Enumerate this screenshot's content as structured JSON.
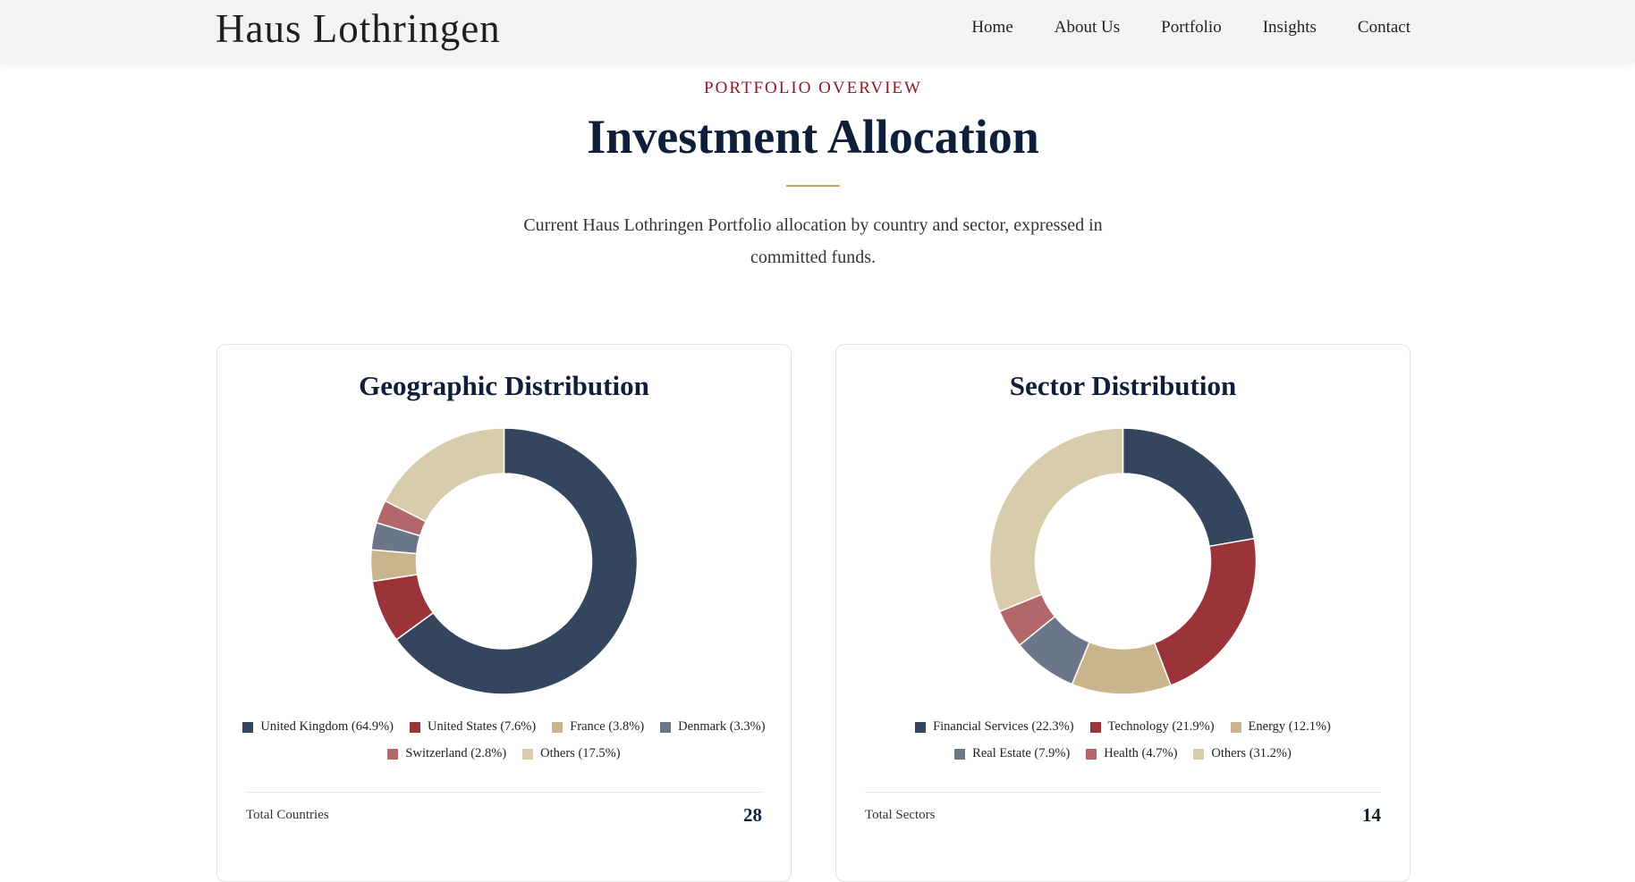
{
  "header": {
    "brand": "Haus Lothringen",
    "nav": [
      "Home",
      "About Us",
      "Portfolio",
      "Insights",
      "Contact"
    ]
  },
  "intro": {
    "eyebrow": "PORTFOLIO OVERVIEW",
    "title": "Investment Allocation",
    "description": "Current Haus Lothringen Portfolio allocation by country and sector, expressed in committed funds."
  },
  "chart_data": [
    {
      "type": "donut",
      "title": "Geographic Distribution",
      "values": [
        64.9,
        7.6,
        3.8,
        3.3,
        2.8,
        17.5
      ],
      "value_labels": [
        "United Kingdom (64.9%)",
        "United States (7.6%)",
        "France (3.8%)",
        "Denmark (3.3%)",
        "Switzerland (2.8%)",
        "Others (17.5%)"
      ],
      "colors": [
        "#34465e",
        "#9b3439",
        "#c9b48d",
        "#6b7689",
        "#b4676a",
        "#d9ccac"
      ],
      "stat_label": "Total Countries",
      "stat_value": 28
    },
    {
      "type": "donut",
      "title": "Sector Distribution",
      "values": [
        22.3,
        21.9,
        12.1,
        7.9,
        4.7,
        31.2
      ],
      "value_labels": [
        "Financial Services (22.3%)",
        "Technology (21.9%)",
        "Energy (12.1%)",
        "Real Estate (7.9%)",
        "Health (4.7%)",
        "Others (31.2%)"
      ],
      "colors": [
        "#34465e",
        "#9b3439",
        "#c9b48d",
        "#6b7689",
        "#b4676a",
        "#d9ccac"
      ],
      "stat_label": "Total Sectors",
      "stat_value": 14
    }
  ]
}
